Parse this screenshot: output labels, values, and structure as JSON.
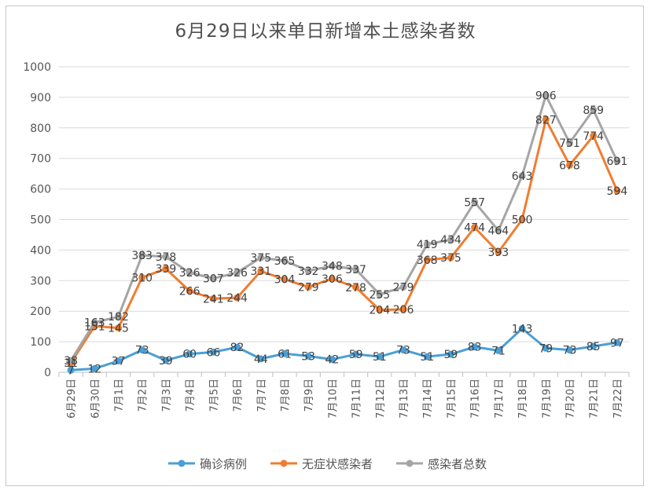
{
  "chart_data": {
    "type": "line",
    "title": "6月29日以来单日新增本土感染者数",
    "categories": [
      "6月29日",
      "6月30日",
      "7月1日",
      "7月2日",
      "7月3日",
      "7月4日",
      "7月5日",
      "7月6日",
      "7月7日",
      "7月8日",
      "7月9日",
      "7月10日",
      "7月11日",
      "7月12日",
      "7月13日",
      "7月14日",
      "7月15日",
      "7月16日",
      "7月17日",
      "7月18日",
      "7月19日",
      "7月20日",
      "7月21日",
      "7月22日"
    ],
    "series": [
      {
        "name": "确诊病例",
        "color": "#4a9fd6",
        "values": [
          7,
          12,
          37,
          73,
          39,
          60,
          66,
          82,
          44,
          61,
          53,
          42,
          59,
          51,
          73,
          51,
          59,
          83,
          71,
          143,
          79,
          73,
          85,
          97
        ]
      },
      {
        "name": "无症状感染者",
        "color": "#ef7d31",
        "values": [
          31,
          151,
          145,
          310,
          339,
          266,
          241,
          244,
          331,
          304,
          279,
          306,
          278,
          204,
          206,
          368,
          375,
          474,
          393,
          500,
          827,
          678,
          774,
          594
        ]
      },
      {
        "name": "感染者总数",
        "color": "#a5a5a5",
        "values": [
          38,
          163,
          182,
          383,
          378,
          326,
          307,
          326,
          375,
          365,
          332,
          348,
          337,
          255,
          279,
          419,
          434,
          557,
          464,
          643,
          906,
          751,
          859,
          691
        ]
      }
    ],
    "ylim": [
      0,
      1000
    ],
    "yticks": [
      0,
      100,
      200,
      300,
      400,
      500,
      600,
      700,
      800,
      900,
      1000
    ],
    "grid": true,
    "legend_position": "bottom"
  }
}
